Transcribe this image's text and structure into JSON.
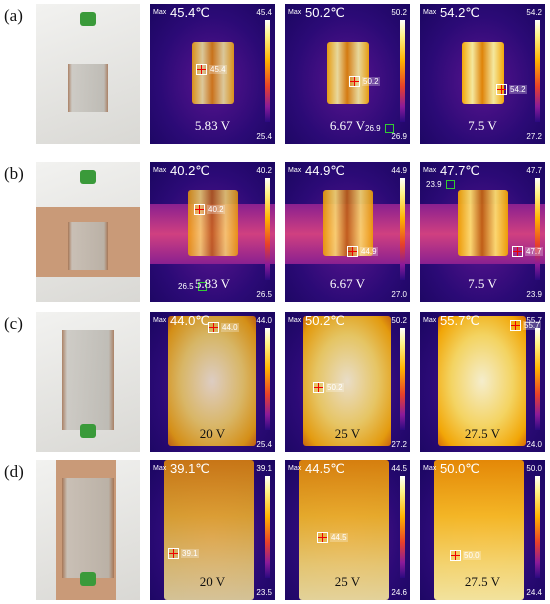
{
  "max_prefix": "Max",
  "rows": [
    {
      "label": "(a)",
      "panels": [
        {
          "max": "45.4℃",
          "scale_top": "45.4",
          "scale_bottom": "25.4",
          "marker": "45.4",
          "voltage": "5.83 V"
        },
        {
          "max": "50.2℃",
          "scale_top": "50.2",
          "scale_bottom": "26.9",
          "marker": "50.2",
          "voltage": "6.67 V",
          "min_marker": "26.9"
        },
        {
          "max": "54.2℃",
          "scale_top": "54.2",
          "scale_bottom": "27.2",
          "marker": "54.2",
          "voltage": "7.5 V"
        }
      ]
    },
    {
      "label": "(b)",
      "panels": [
        {
          "max": "40.2℃",
          "scale_top": "40.2",
          "scale_bottom": "26.5",
          "marker": "40.2",
          "voltage": "5.83 V",
          "min_marker": "26.5"
        },
        {
          "max": "44.9℃",
          "scale_top": "44.9",
          "scale_bottom": "27.0",
          "marker": "44.9",
          "voltage": "6.67 V"
        },
        {
          "max": "47.7℃",
          "scale_top": "47.7",
          "scale_bottom": "23.9",
          "marker": "47.7",
          "voltage": "7.5 V",
          "min_marker": "23.9"
        }
      ]
    },
    {
      "label": "(c)",
      "panels": [
        {
          "max": "44.0℃",
          "scale_top": "44.0",
          "scale_bottom": "25.4",
          "marker": "44.0",
          "voltage": "20 V"
        },
        {
          "max": "50.2℃",
          "scale_top": "50.2",
          "scale_bottom": "27.2",
          "marker": "50.2",
          "voltage": "25 V"
        },
        {
          "max": "55.7℃",
          "scale_top": "55.7",
          "scale_bottom": "24.0",
          "marker": "55.7",
          "voltage": "27.5 V"
        }
      ]
    },
    {
      "label": "(d)",
      "panels": [
        {
          "max": "39.1℃",
          "scale_top": "39.1",
          "scale_bottom": "23.5",
          "marker": "39.1",
          "voltage": "20 V"
        },
        {
          "max": "44.5℃",
          "scale_top": "44.5",
          "scale_bottom": "24.6",
          "marker": "44.5",
          "voltage": "25 V"
        },
        {
          "max": "50.0℃",
          "scale_top": "50.0",
          "scale_bottom": "24.4",
          "marker": "50.0",
          "voltage": "27.5 V"
        }
      ]
    }
  ]
}
